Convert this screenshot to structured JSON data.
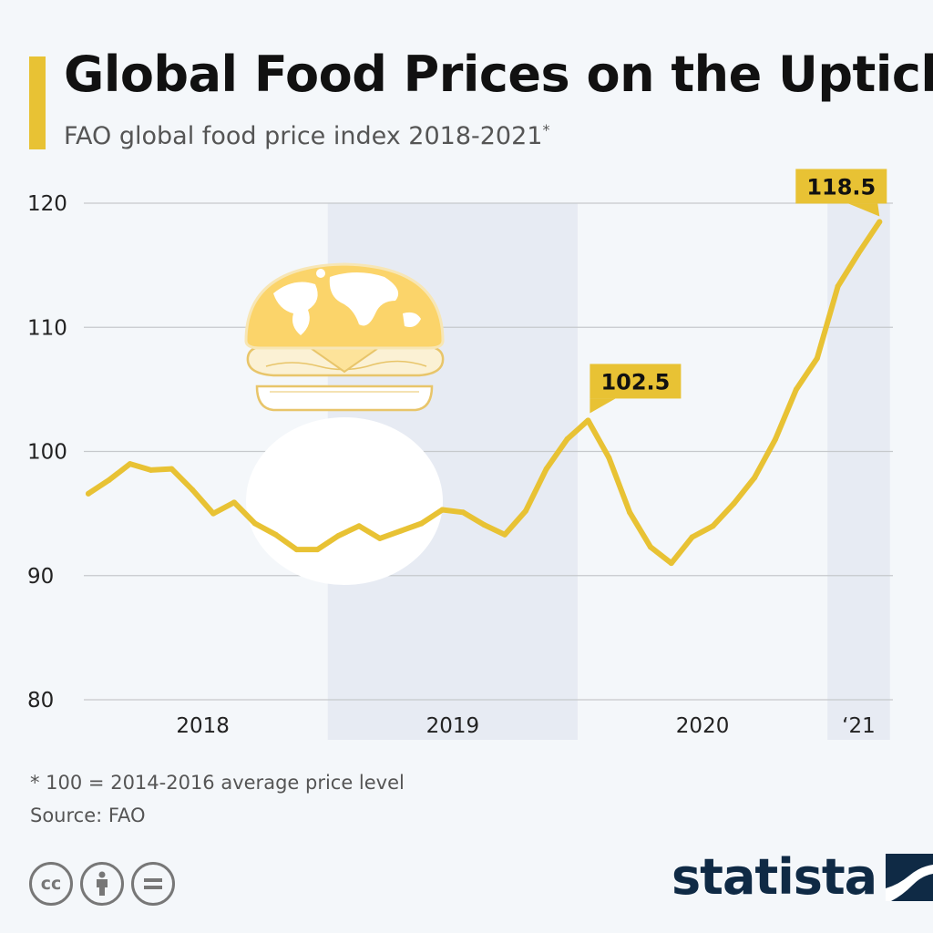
{
  "header": {
    "title": "Global Food Prices on the Uptick",
    "subtitle": "FAO global food price index 2018-2021",
    "subtitle_mark": "*"
  },
  "footer": {
    "footnote": "* 100 = 2014-2016 average price level",
    "source": "Source: FAO",
    "license_icons": [
      "cc",
      "attribution",
      "no-derivatives"
    ],
    "brand": "statista"
  },
  "colors": {
    "line": "#e8c234",
    "band": "#e7ebf3",
    "grid": "#c6c9cc",
    "brand": "#0f2a45",
    "callout_text": "#111111",
    "accent": "#e8c234"
  },
  "chart_data": {
    "type": "line",
    "title": "Global Food Prices on the Uptick",
    "subtitle": "FAO global food price index 2018-2021*",
    "ylim": [
      80,
      120
    ],
    "yticks": [
      80,
      90,
      100,
      110,
      120
    ],
    "grid": true,
    "x": [
      "2018-01",
      "2018-02",
      "2018-03",
      "2018-04",
      "2018-05",
      "2018-06",
      "2018-07",
      "2018-08",
      "2018-09",
      "2018-10",
      "2018-11",
      "2018-12",
      "2019-01",
      "2019-02",
      "2019-03",
      "2019-04",
      "2019-05",
      "2019-06",
      "2019-07",
      "2019-08",
      "2019-09",
      "2019-10",
      "2019-11",
      "2019-12",
      "2020-01",
      "2020-02",
      "2020-03",
      "2020-04",
      "2020-05",
      "2020-06",
      "2020-07",
      "2020-08",
      "2020-09",
      "2020-10",
      "2020-11",
      "2020-12",
      "2021-01",
      "2021-02",
      "2021-03"
    ],
    "series": [
      {
        "values": [
          96.6,
          97.7,
          99.0,
          98.5,
          98.6,
          96.9,
          95.0,
          95.9,
          94.2,
          93.3,
          92.1,
          92.1,
          93.2,
          94.0,
          93.0,
          93.6,
          94.2,
          95.3,
          95.1,
          94.1,
          93.3,
          95.2,
          98.6,
          101.0,
          102.5,
          99.5,
          95.1,
          92.3,
          91.0,
          93.1,
          94.0,
          95.8,
          97.9,
          101.0,
          105.0,
          107.5,
          113.3,
          116.0,
          118.5
        ]
      }
    ],
    "year_labels": [
      {
        "label": "2018",
        "start": "2018-01",
        "end": "2018-12",
        "shaded": false
      },
      {
        "label": "2019",
        "start": "2019-01",
        "end": "2019-12",
        "shaded": true
      },
      {
        "label": "2020",
        "start": "2020-01",
        "end": "2020-12",
        "shaded": false
      },
      {
        "label": "‘21",
        "start": "2021-01",
        "end": "2021-03",
        "shaded": true
      }
    ],
    "annotations": [
      {
        "x": "2020-01",
        "value": 102.5,
        "text": "102.5"
      },
      {
        "x": "2021-03",
        "value": 118.5,
        "text": "118.5"
      }
    ]
  }
}
